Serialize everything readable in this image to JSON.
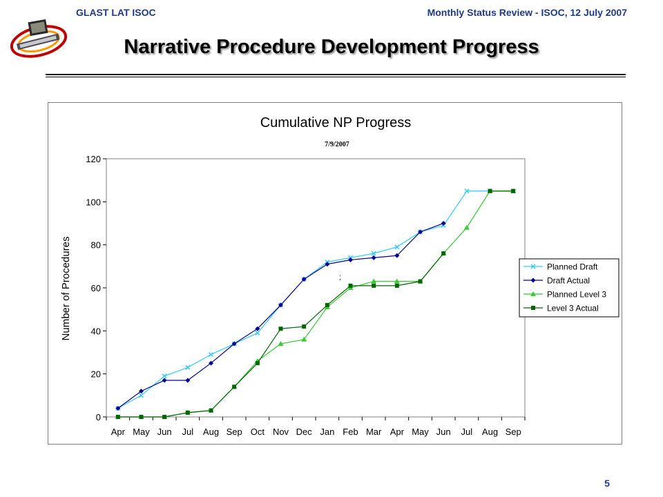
{
  "header": {
    "left": "GLAST LAT ISOC",
    "right": "Monthly Status Review - ISOC, 12 July 2007"
  },
  "slide": {
    "title": "Narrative Procedure Development Progress",
    "page_number": "5"
  },
  "chart_data": {
    "type": "line",
    "title": "Cumulative NP Progress",
    "subtitle": "7/9/2007",
    "xlabel": "",
    "ylabel": "Number of Procedures",
    "ylim": [
      0,
      120
    ],
    "yticks": [
      0,
      20,
      40,
      60,
      80,
      100,
      120
    ],
    "grid": false,
    "legend_position": "right",
    "categories": [
      "Apr",
      "May",
      "Jun",
      "Jul",
      "Aug",
      "Sep",
      "Oct",
      "Nov",
      "Dec",
      "Jan",
      "Feb",
      "Mar",
      "Apr",
      "May",
      "Jun",
      "Jul",
      "Aug",
      "Sep"
    ],
    "series": [
      {
        "name": "Planned Draft",
        "color": "#33ccff",
        "marker": "x",
        "values": [
          4,
          10,
          19,
          23,
          29,
          34,
          39,
          52,
          64,
          72,
          74,
          76,
          79,
          86,
          89,
          105,
          105,
          105
        ]
      },
      {
        "name": "Draft Actual",
        "color": "#000099",
        "marker": "diamond",
        "values": [
          4,
          12,
          17,
          17,
          25,
          34,
          41,
          52,
          64,
          71,
          73,
          74,
          75,
          86,
          90,
          null,
          null,
          null
        ]
      },
      {
        "name": "Planned Level 3",
        "color": "#33cc33",
        "marker": "triangle",
        "values": [
          0,
          0,
          0,
          2,
          3,
          14,
          26,
          34,
          36,
          51,
          60,
          63,
          63,
          63,
          76,
          88,
          105,
          105
        ]
      },
      {
        "name": "Level 3 Actual",
        "color": "#006600",
        "marker": "square",
        "values": [
          0,
          0,
          0,
          2,
          3,
          14,
          25,
          41,
          42,
          52,
          61,
          61,
          61,
          63,
          76,
          null,
          105,
          105
        ]
      }
    ]
  }
}
